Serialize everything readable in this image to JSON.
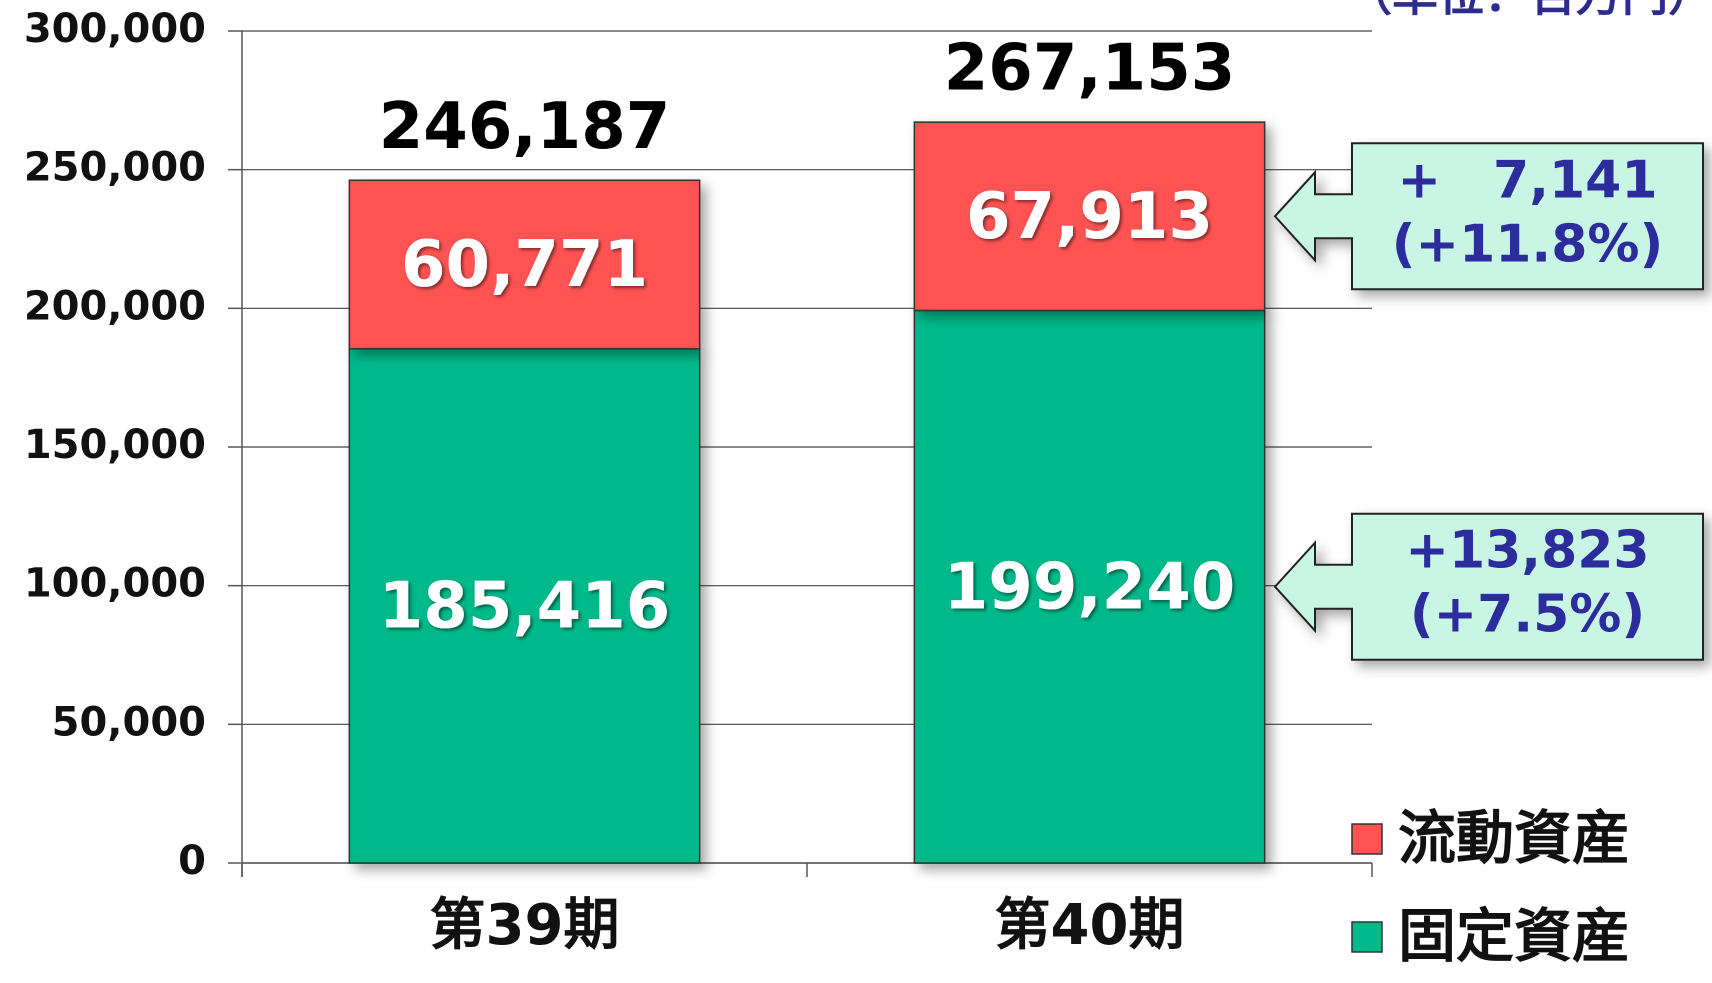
{
  "chart_data": {
    "type": "stacked_bar",
    "unit_label": "（単位：百万円）",
    "categories": [
      "第39期",
      "第40期"
    ],
    "series": [
      {
        "name": "固定資産",
        "color": "#00b98a",
        "values": [
          185416,
          199240
        ],
        "value_labels": [
          "185,416",
          "199,240"
        ]
      },
      {
        "name": "流動資産",
        "color": "#ff5252",
        "values": [
          60771,
          67913
        ],
        "value_labels": [
          "60,771",
          "67,913"
        ]
      }
    ],
    "totals": [
      246187,
      267153
    ],
    "total_labels": [
      "246,187",
      "267,153"
    ],
    "annotations": [
      {
        "series": 1,
        "lines": [
          "+　7,141",
          "(+11.8%)"
        ]
      },
      {
        "series": 0,
        "lines": [
          "+13,823",
          "(+7.5%)"
        ]
      }
    ],
    "ylim": [
      0,
      300000
    ],
    "yticks": [
      0,
      {
        "value": 50000,
        "label": "50,000"
      },
      {
        "value": 100000,
        "label": "100,000"
      },
      {
        "value": 150000,
        "label": "150,000"
      },
      {
        "value": 200000,
        "label": "200,000"
      },
      {
        "value": 250000,
        "label": "250,000"
      },
      {
        "value": 300000,
        "label": "300,000"
      }
    ],
    "grid": true,
    "legend": "bottom-right"
  }
}
